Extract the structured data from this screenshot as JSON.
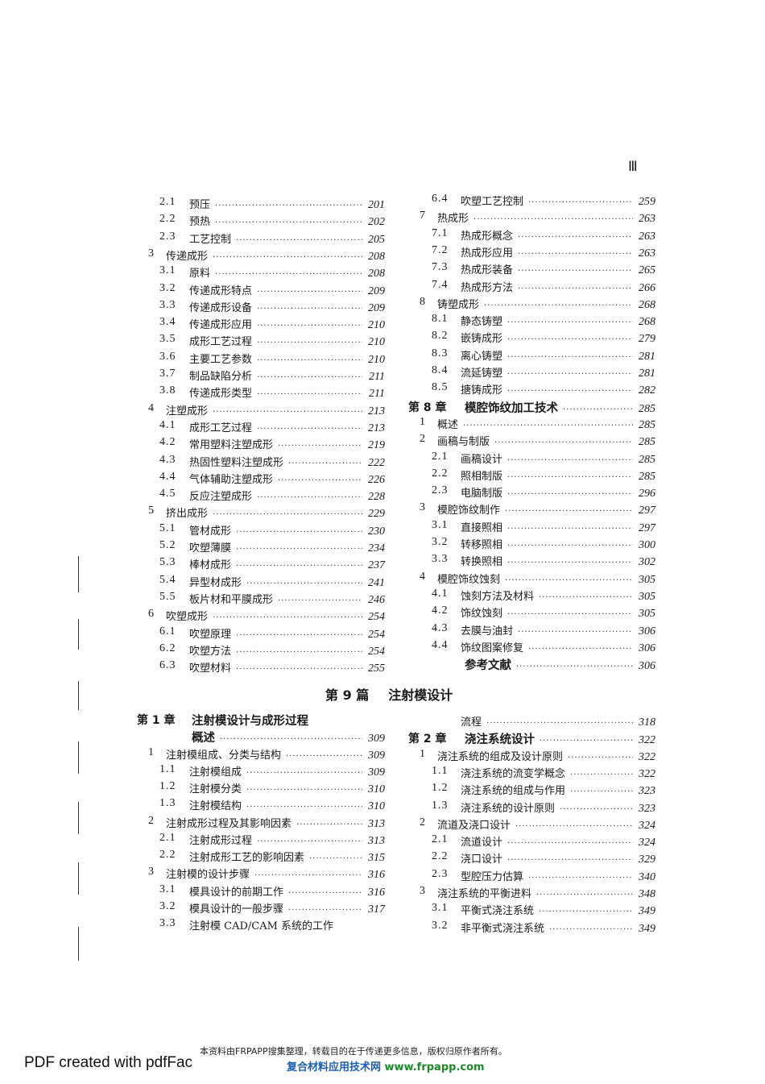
{
  "page_number": "Ⅲ",
  "part_heading": {
    "label": "第 9 篇",
    "title": "注射模设计"
  },
  "upper_left": [
    {
      "num": "2.1",
      "title": "预压",
      "page": "201",
      "level": 2
    },
    {
      "num": "2.2",
      "title": "预热",
      "page": "202",
      "level": 2
    },
    {
      "num": "2.3",
      "title": "工艺控制",
      "page": "205",
      "level": 2
    },
    {
      "num": "3",
      "title": "传递成形",
      "page": "208",
      "level": 1
    },
    {
      "num": "3.1",
      "title": "原料",
      "page": "208",
      "level": 2
    },
    {
      "num": "3.2",
      "title": "传递成形特点",
      "page": "209",
      "level": 2
    },
    {
      "num": "3.3",
      "title": "传递成形设备",
      "page": "209",
      "level": 2
    },
    {
      "num": "3.4",
      "title": "传递成形应用",
      "page": "210",
      "level": 2
    },
    {
      "num": "3.5",
      "title": "成形工艺过程",
      "page": "210",
      "level": 2
    },
    {
      "num": "3.6",
      "title": "主要工艺参数",
      "page": "210",
      "level": 2
    },
    {
      "num": "3.7",
      "title": "制品缺陷分析",
      "page": "211",
      "level": 2
    },
    {
      "num": "3.8",
      "title": "传递成形类型",
      "page": "211",
      "level": 2
    },
    {
      "num": "4",
      "title": "注塑成形",
      "page": "213",
      "level": 1
    },
    {
      "num": "4.1",
      "title": "成形工艺过程",
      "page": "213",
      "level": 2
    },
    {
      "num": "4.2",
      "title": "常用塑料注塑成形",
      "page": "219",
      "level": 2
    },
    {
      "num": "4.3",
      "title": "热固性塑料注塑成形",
      "page": "222",
      "level": 2
    },
    {
      "num": "4.4",
      "title": "气体辅助注塑成形",
      "page": "226",
      "level": 2
    },
    {
      "num": "4.5",
      "title": "反应注塑成形",
      "page": "228",
      "level": 2
    },
    {
      "num": "5",
      "title": "挤出成形",
      "page": "229",
      "level": 1
    },
    {
      "num": "5.1",
      "title": "管材成形",
      "page": "230",
      "level": 2
    },
    {
      "num": "5.2",
      "title": "吹塑薄膜",
      "page": "234",
      "level": 2
    },
    {
      "num": "5.3",
      "title": "棒材成形",
      "page": "237",
      "level": 2
    },
    {
      "num": "5.4",
      "title": "异型材成形",
      "page": "241",
      "level": 2
    },
    {
      "num": "5.5",
      "title": "板片材和平膜成形",
      "page": "246",
      "level": 2
    },
    {
      "num": "6",
      "title": "吹塑成形",
      "page": "254",
      "level": 1
    },
    {
      "num": "6.1",
      "title": "吹塑原理",
      "page": "254",
      "level": 2
    },
    {
      "num": "6.2",
      "title": "吹塑方法",
      "page": "254",
      "level": 2
    },
    {
      "num": "6.3",
      "title": "吹塑材料",
      "page": "255",
      "level": 2
    }
  ],
  "upper_right": [
    {
      "num": "6.4",
      "title": "吹塑工艺控制",
      "page": "259",
      "level": 2
    },
    {
      "num": "7",
      "title": "热成形",
      "page": "263",
      "level": 1
    },
    {
      "num": "7.1",
      "title": "热成形概念",
      "page": "263",
      "level": 2
    },
    {
      "num": "7.2",
      "title": "热成形应用",
      "page": "263",
      "level": 2
    },
    {
      "num": "7.3",
      "title": "热成形装备",
      "page": "265",
      "level": 2
    },
    {
      "num": "7.4",
      "title": "热成形方法",
      "page": "266",
      "level": 2
    },
    {
      "num": "8",
      "title": "铸塑成形",
      "page": "268",
      "level": 1
    },
    {
      "num": "8.1",
      "title": "静态铸塑",
      "page": "268",
      "level": 2
    },
    {
      "num": "8.2",
      "title": "嵌铸成形",
      "page": "279",
      "level": 2
    },
    {
      "num": "8.3",
      "title": "离心铸塑",
      "page": "281",
      "level": 2
    },
    {
      "num": "8.4",
      "title": "流延铸塑",
      "page": "281",
      "level": 2
    },
    {
      "num": "8.5",
      "title": "搪铸成形",
      "page": "282",
      "level": 2
    },
    {
      "num": "第 8 章",
      "title": "模腔饰纹加工技术",
      "page": "285",
      "level": 0
    },
    {
      "num": "1",
      "title": "概述",
      "page": "285",
      "level": 1
    },
    {
      "num": "2",
      "title": "画稿与制版",
      "page": "285",
      "level": 1
    },
    {
      "num": "2.1",
      "title": "画稿设计",
      "page": "285",
      "level": 2
    },
    {
      "num": "2.2",
      "title": "照相制版",
      "page": "285",
      "level": 2
    },
    {
      "num": "2.3",
      "title": "电脑制版",
      "page": "296",
      "level": 2
    },
    {
      "num": "3",
      "title": "模腔饰纹制作",
      "page": "297",
      "level": 1
    },
    {
      "num": "3.1",
      "title": "直接照相",
      "page": "297",
      "level": 2
    },
    {
      "num": "3.2",
      "title": "转移照相",
      "page": "300",
      "level": 2
    },
    {
      "num": "3.3",
      "title": "转换照相",
      "page": "302",
      "level": 2
    },
    {
      "num": "4",
      "title": "模腔饰纹蚀刻",
      "page": "305",
      "level": 1
    },
    {
      "num": "4.1",
      "title": "蚀刻方法及材料",
      "page": "305",
      "level": 2
    },
    {
      "num": "4.2",
      "title": "饰纹蚀刻",
      "page": "305",
      "level": 2
    },
    {
      "num": "4.3",
      "title": "去膜与油封",
      "page": "306",
      "level": 2
    },
    {
      "num": "4.4",
      "title": "饰纹图案修复",
      "page": "306",
      "level": 2
    },
    {
      "num": "",
      "title": "参考文献",
      "page": "306",
      "level": 0
    }
  ],
  "lower_left": [
    {
      "num": "第 1 章",
      "title": "注射模设计与成形过程",
      "page": "",
      "level": 0,
      "noleader": true
    },
    {
      "num": "",
      "title": "概述",
      "page": "309",
      "level": 3
    },
    {
      "num": "1",
      "title": "注射模组成、分类与结构",
      "page": "309",
      "level": 1
    },
    {
      "num": "1.1",
      "title": "注射模组成",
      "page": "309",
      "level": 2
    },
    {
      "num": "1.2",
      "title": "注射模分类",
      "page": "310",
      "level": 2
    },
    {
      "num": "1.3",
      "title": "注射模结构",
      "page": "310",
      "level": 2
    },
    {
      "num": "2",
      "title": "注射成形过程及其影响因素",
      "page": "313",
      "level": 1
    },
    {
      "num": "2.1",
      "title": "注射成形过程",
      "page": "313",
      "level": 2
    },
    {
      "num": "2.2",
      "title": "注射成形工艺的影响因素",
      "page": "315",
      "level": 2
    },
    {
      "num": "3",
      "title": "注射模的设计步骤",
      "page": "316",
      "level": 1
    },
    {
      "num": "3.1",
      "title": "模具设计的前期工作",
      "page": "316",
      "level": 2
    },
    {
      "num": "3.2",
      "title": "模具设计的一般步骤",
      "page": "317",
      "level": 2
    },
    {
      "num": "3.3",
      "title": "注射模 CAD/CAM 系统的工作",
      "page": "",
      "level": 2,
      "noleader": true
    }
  ],
  "lower_right": [
    {
      "num": "",
      "title": "流程",
      "page": "318",
      "level": 4
    },
    {
      "num": "第 2 章",
      "title": "浇注系统设计",
      "page": "322",
      "level": 0
    },
    {
      "num": "1",
      "title": "浇注系统的组成及设计原则",
      "page": "322",
      "level": 1
    },
    {
      "num": "1.1",
      "title": "浇注系统的流变学概念",
      "page": "322",
      "level": 2
    },
    {
      "num": "1.2",
      "title": "浇注系统的组成与作用",
      "page": "323",
      "level": 2
    },
    {
      "num": "1.3",
      "title": "浇注系统的设计原则",
      "page": "323",
      "level": 2
    },
    {
      "num": "2",
      "title": "流道及浇口设计",
      "page": "324",
      "level": 1
    },
    {
      "num": "2.1",
      "title": "流道设计",
      "page": "324",
      "level": 2
    },
    {
      "num": "2.2",
      "title": "浇口设计",
      "page": "329",
      "level": 2
    },
    {
      "num": "2.3",
      "title": "型腔压力估算",
      "page": "340",
      "level": 2
    },
    {
      "num": "3",
      "title": "浇注系统的平衡进料",
      "page": "348",
      "level": 1
    },
    {
      "num": "3.1",
      "title": "平衡式浇注系统",
      "page": "349",
      "level": 2
    },
    {
      "num": "3.2",
      "title": "非平衡式浇注系统",
      "page": "349",
      "level": 2
    }
  ],
  "footer": {
    "pdf_label": "PDF created with pdfFactory",
    "notice": "本资料由FRPAPP搜集整理，转载目的在于传递更多信息，版权归原作者所有。",
    "site_name": "复合材料应用技术网",
    "site_url": "www.frpapp.com",
    "site_name_color": "#1a5fb4",
    "site_url_color": "#1f8a2a"
  }
}
